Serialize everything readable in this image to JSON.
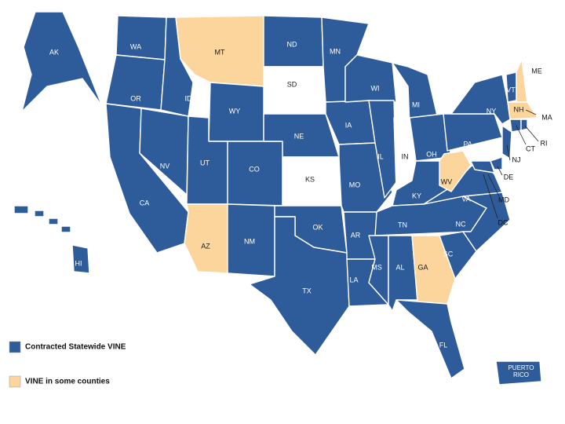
{
  "status_colors": {
    "statewide": "#2e5c9a",
    "some": "#fbd59c",
    "none": "#ffffff"
  },
  "legend": [
    {
      "label": "Contracted Statewide VINE",
      "status": "statewide"
    },
    {
      "label": "VINE in some counties",
      "status": "some"
    }
  ],
  "states": [
    {
      "label": "AK",
      "status": "statewide"
    },
    {
      "label": "WA",
      "status": "statewide"
    },
    {
      "label": "OR",
      "status": "statewide"
    },
    {
      "label": "CA",
      "status": "statewide"
    },
    {
      "label": "NV",
      "status": "statewide"
    },
    {
      "label": "ID",
      "status": "statewide"
    },
    {
      "label": "MT",
      "status": "some"
    },
    {
      "label": "WY",
      "status": "statewide"
    },
    {
      "label": "UT",
      "status": "statewide"
    },
    {
      "label": "AZ",
      "status": "some"
    },
    {
      "label": "CO",
      "status": "statewide"
    },
    {
      "label": "NM",
      "status": "statewide"
    },
    {
      "label": "ND",
      "status": "statewide"
    },
    {
      "label": "SD",
      "status": "none"
    },
    {
      "label": "NE",
      "status": "statewide"
    },
    {
      "label": "KS",
      "status": "none"
    },
    {
      "label": "OK",
      "status": "statewide"
    },
    {
      "label": "TX",
      "status": "statewide"
    },
    {
      "label": "MN",
      "status": "statewide"
    },
    {
      "label": "IA",
      "status": "statewide"
    },
    {
      "label": "MO",
      "status": "statewide"
    },
    {
      "label": "AR",
      "status": "statewide"
    },
    {
      "label": "LA",
      "status": "statewide"
    },
    {
      "label": "WI",
      "status": "statewide"
    },
    {
      "label": "IL",
      "status": "statewide"
    },
    {
      "label": "IN",
      "status": "none"
    },
    {
      "label": "MI",
      "status": "statewide"
    },
    {
      "label": "OH",
      "status": "statewide"
    },
    {
      "label": "KY",
      "status": "statewide"
    },
    {
      "label": "TN",
      "status": "statewide"
    },
    {
      "label": "MS",
      "status": "statewide"
    },
    {
      "label": "AL",
      "status": "statewide"
    },
    {
      "label": "GA",
      "status": "some"
    },
    {
      "label": "FL",
      "status": "statewide"
    },
    {
      "label": "SC",
      "status": "statewide"
    },
    {
      "label": "NC",
      "status": "statewide"
    },
    {
      "label": "VA",
      "status": "statewide"
    },
    {
      "label": "WV",
      "status": "some"
    },
    {
      "label": "PA",
      "status": "statewide"
    },
    {
      "label": "NY",
      "status": "statewide"
    },
    {
      "label": "VT",
      "status": "statewide"
    },
    {
      "label": "NH",
      "status": "some"
    },
    {
      "label": "ME",
      "status": "none"
    },
    {
      "label": "MA",
      "status": "some"
    },
    {
      "label": "CT",
      "status": "statewide"
    },
    {
      "label": "RI",
      "status": "statewide"
    },
    {
      "label": "NJ",
      "status": "statewide"
    },
    {
      "label": "DE",
      "status": "statewide"
    },
    {
      "label": "MD",
      "status": "statewide"
    },
    {
      "label": "DC",
      "status": "statewide"
    },
    {
      "label": "HI",
      "status": "statewide"
    },
    {
      "label": "PUERTO RICO",
      "status": "statewide"
    }
  ]
}
